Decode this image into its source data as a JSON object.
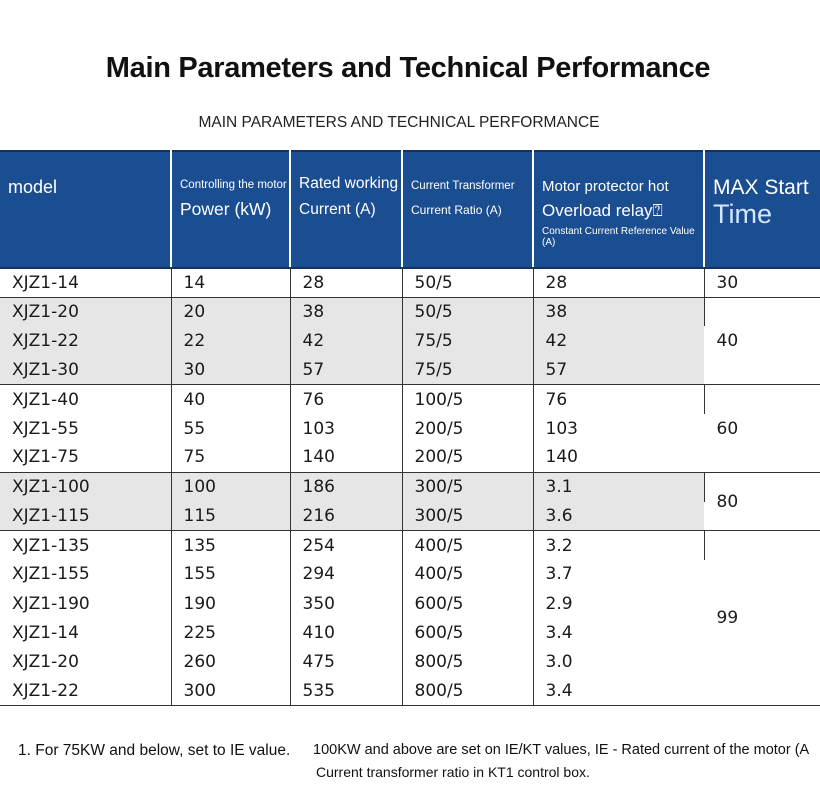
{
  "title": "Main Parameters and Technical Performance",
  "subtitle": "MAIN PARAMETERS AND TECHNICAL PERFORMANCE",
  "header": {
    "model": "model",
    "power_top": "Controlling the motor",
    "power_bottom": "Power (kW)",
    "current_top": "Rated working",
    "current_bottom": "Current (A)",
    "ct_top": "Current Transformer",
    "ct_bottom": "Current Ratio (A)",
    "relay_top": "Motor protector hot",
    "relay_mid": "Overload relay⍰",
    "relay_bottom": "Constant Current Reference Value (A)",
    "start_top": "MAX Start",
    "start_bottom": "Time"
  },
  "rows": [
    {
      "model": "XJZ1-14",
      "power": "14",
      "current": "28",
      "ct": "50/5",
      "relay": "28"
    },
    {
      "model": "XJZ1-20",
      "power": "20",
      "current": "38",
      "ct": "50/5",
      "relay": "38"
    },
    {
      "model": "XJZ1-22",
      "power": "22",
      "current": "42",
      "ct": "75/5",
      "relay": "42"
    },
    {
      "model": "XJZ1-30",
      "power": "30",
      "current": "57",
      "ct": "75/5",
      "relay": "57"
    },
    {
      "model": "XJZ1-40",
      "power": "40",
      "current": "76",
      "ct": "100/5",
      "relay": "76"
    },
    {
      "model": "XJZ1-55",
      "power": "55",
      "current": "103",
      "ct": "200/5",
      "relay": "103"
    },
    {
      "model": "XJZ1-75",
      "power": "75",
      "current": "140",
      "ct": "200/5",
      "relay": "140"
    },
    {
      "model": "XJZ1-100",
      "power": "100",
      "current": "186",
      "ct": "300/5",
      "relay": "3.1"
    },
    {
      "model": "XJZ1-115",
      "power": "115",
      "current": "216",
      "ct": "300/5",
      "relay": "3.6"
    },
    {
      "model": "XJZ1-135",
      "power": "135",
      "current": "254",
      "ct": "400/5",
      "relay": "3.2"
    },
    {
      "model": "XJZ1-155",
      "power": "155",
      "current": "294",
      "ct": "400/5",
      "relay": "3.7"
    },
    {
      "model": "XJZ1-190",
      "power": "190",
      "current": "350",
      "ct": "600/5",
      "relay": "2.9"
    },
    {
      "model": "XJZ1-14",
      "power": "225",
      "current": "410",
      "ct": "600/5",
      "relay": "3.4"
    },
    {
      "model": "XJZ1-20",
      "power": "260",
      "current": "475",
      "ct": "800/5",
      "relay": "3.0"
    },
    {
      "model": "XJZ1-22",
      "power": "300",
      "current": "535",
      "ct": "800/5",
      "relay": "3.4"
    }
  ],
  "start_times": [
    "30",
    "40",
    "60",
    "80",
    "99"
  ],
  "notes": {
    "note1": "1. For 75KW and below, set to IE value.",
    "note2": "100KW and above are set on IE/KT values, IE - Rated current of the motor (A",
    "note3": "Current transformer ratio in KT1 control box."
  }
}
